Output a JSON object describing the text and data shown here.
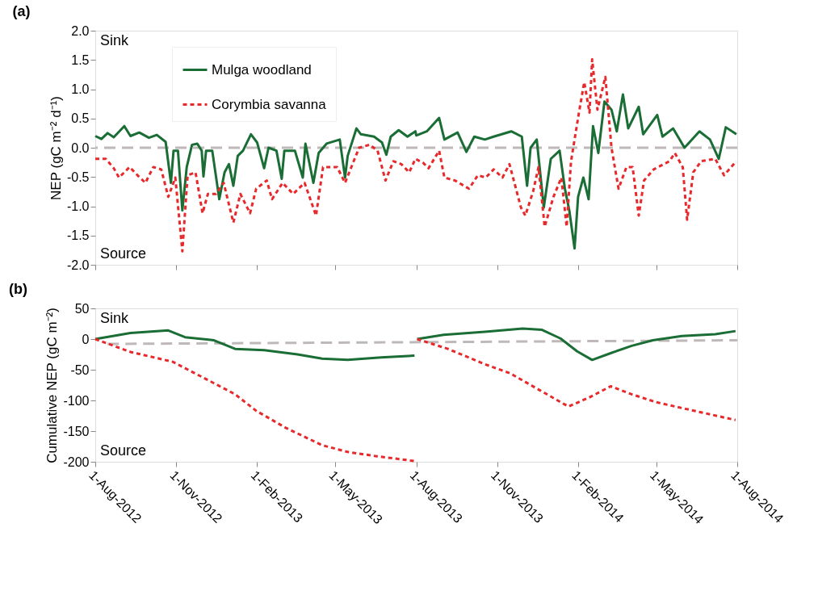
{
  "chart_data": [
    {
      "type": "line",
      "title": "(a)",
      "ylabel": "NEP (gC m⁻² d⁻¹)",
      "tick_labels": "y",
      "legend": "top left",
      "grid": false,
      "xlim": [
        "2012-08-01",
        "2014-08-01"
      ],
      "xticks": [
        {
          "value": "2012-08-01",
          "label": null
        },
        {
          "value": "2012-11-01",
          "label": null
        },
        {
          "value": "2013-02-01",
          "label": null
        },
        {
          "value": "2013-05-01",
          "label": null
        },
        {
          "value": "2013-08-01",
          "label": null
        },
        {
          "value": "2013-11-01",
          "label": null
        },
        {
          "value": "2014-02-01",
          "label": null
        },
        {
          "value": "2014-05-01",
          "label": null
        },
        {
          "value": "2014-08-01",
          "label": null
        }
      ],
      "ylim": [
        -2,
        2
      ],
      "yticks": [
        {
          "value": -2,
          "label": "-2.0"
        },
        {
          "value": -1.5,
          "label": "-1.5"
        },
        {
          "value": -1,
          "label": "-1.0"
        },
        {
          "value": -0.5,
          "label": "-0.5"
        },
        {
          "value": 0,
          "label": "0.0"
        },
        {
          "value": 0.5,
          "label": "0.5"
        },
        {
          "value": 1,
          "label": "1.0"
        },
        {
          "value": 1.5,
          "label": "1.5"
        },
        {
          "value": 2,
          "label": "2.0"
        }
      ],
      "ref_lines": [
        {
          "axis": "y",
          "value": 0,
          "label": null,
          "color": "#bfb8b8",
          "line_style": "dashed"
        }
      ],
      "annotations": [
        "Sink",
        "Source"
      ],
      "series": [
        {
          "name": "Mulga woodland",
          "color": "#1a6e35",
          "line_style": "solid",
          "x": [
            "2012-08-01",
            "2012-08-08",
            "2012-08-15",
            "2012-08-22",
            "2012-09-03",
            "2012-09-10",
            "2012-09-20",
            "2012-10-01",
            "2012-10-10",
            "2012-10-20",
            "2012-10-26",
            "2012-10-29",
            "2012-11-03",
            "2012-11-08",
            "2012-11-13",
            "2012-11-19",
            "2012-11-25",
            "2012-11-30",
            "2012-12-02",
            "2012-12-05",
            "2012-12-12",
            "2012-12-20",
            "2012-12-26",
            "2012-12-31",
            "2013-01-05",
            "2013-01-10",
            "2013-01-16",
            "2013-01-25",
            "2013-02-01",
            "2013-02-09",
            "2013-02-14",
            "2013-02-23",
            "2013-03-01",
            "2013-03-04",
            "2013-03-16",
            "2013-03-25",
            "2013-03-28",
            "2013-04-06",
            "2013-04-12",
            "2013-04-21",
            "2013-05-06",
            "2013-05-12",
            "2013-05-15",
            "2013-05-25",
            "2013-05-30",
            "2013-06-14",
            "2013-06-23",
            "2013-06-28",
            "2013-07-03",
            "2013-07-12",
            "2013-07-22",
            "2013-07-31",
            "2013-08-01",
            "2013-08-13",
            "2013-08-27",
            "2013-09-02",
            "2013-09-17",
            "2013-09-27",
            "2013-10-06",
            "2013-10-18",
            "2013-10-28",
            "2013-11-17",
            "2013-11-29",
            "2013-12-05",
            "2013-12-09",
            "2013-12-16",
            "2013-12-24",
            "2014-01-01",
            "2014-01-11",
            "2014-01-17",
            "2014-01-22",
            "2014-01-28",
            "2014-02-01",
            "2014-02-07",
            "2014-02-13",
            "2014-02-18",
            "2014-02-24",
            "2014-03-03",
            "2014-03-11",
            "2014-03-17",
            "2014-03-24",
            "2014-03-30",
            "2014-04-11",
            "2014-04-16",
            "2014-05-02",
            "2014-05-08",
            "2014-05-20",
            "2014-06-02",
            "2014-06-19",
            "2014-07-01",
            "2014-07-11",
            "2014-07-19",
            "2014-07-31"
          ],
          "values": [
            0.2,
            0.15,
            0.25,
            0.18,
            0.37,
            0.2,
            0.26,
            0.17,
            0.22,
            0.1,
            -0.6,
            -0.05,
            -0.05,
            -1.07,
            -0.33,
            0.05,
            0.07,
            -0.05,
            -0.49,
            -0.05,
            -0.05,
            -0.88,
            -0.42,
            -0.28,
            -0.65,
            -0.14,
            -0.05,
            0.23,
            0.09,
            -0.35,
            0,
            -0.05,
            -0.53,
            -0.05,
            -0.05,
            -0.51,
            0.07,
            -0.6,
            -0.09,
            0.07,
            0.14,
            -0.51,
            -0.14,
            0.33,
            0.23,
            0.19,
            0.09,
            -0.12,
            0.19,
            0.3,
            0.19,
            0.28,
            0.21,
            0.28,
            0.51,
            0.14,
            0.26,
            -0.07,
            0.19,
            0.14,
            0.19,
            0.28,
            0.19,
            -0.65,
            0,
            0.14,
            -1.02,
            -0.19,
            -0.05,
            -0.7,
            -1.07,
            -1.72,
            -0.84,
            -0.51,
            -0.88,
            0.37,
            -0.09,
            0.79,
            0.65,
            0.28,
            0.91,
            0.33,
            0.7,
            0.23,
            0.56,
            0.19,
            0.33,
            0,
            0.28,
            0.14,
            -0.19,
            0.35,
            0.23
          ]
        },
        {
          "name": "Corymbia savanna",
          "color": "#e8292b",
          "line_style": "dotted",
          "x": [
            "2012-08-01",
            "2012-08-13",
            "2012-08-22",
            "2012-08-28",
            "2012-09-09",
            "2012-09-18",
            "2012-09-27",
            "2012-10-06",
            "2012-10-15",
            "2012-10-23",
            "2012-10-31",
            "2012-11-08",
            "2012-11-14",
            "2012-11-23",
            "2012-12-01",
            "2012-12-07",
            "2012-12-16",
            "2012-12-25",
            "2013-01-05",
            "2013-01-13",
            "2013-01-24",
            "2013-01-31",
            "2013-02-12",
            "2013-02-18",
            "2013-03-02",
            "2013-03-14",
            "2013-03-27",
            "2013-04-09",
            "2013-04-17",
            "2013-05-03",
            "2013-05-12",
            "2013-05-28",
            "2013-06-09",
            "2013-06-18",
            "2013-06-27",
            "2013-07-06",
            "2013-07-15",
            "2013-07-24",
            "2013-07-31",
            "2013-08-09",
            "2013-08-15",
            "2013-08-27",
            "2013-09-02",
            "2013-09-14",
            "2013-09-30",
            "2013-10-10",
            "2013-10-19",
            "2013-10-28",
            "2013-11-07",
            "2013-11-15",
            "2013-11-28",
            "2013-12-03",
            "2013-12-12",
            "2013-12-18",
            "2013-12-25",
            "2014-01-04",
            "2014-01-13",
            "2014-01-19",
            "2014-01-24",
            "2014-02-02",
            "2014-02-08",
            "2014-02-14",
            "2014-02-17",
            "2014-02-23",
            "2014-03-04",
            "2014-03-11",
            "2014-03-19",
            "2014-03-28",
            "2014-04-04",
            "2014-04-11",
            "2014-04-17",
            "2014-04-28",
            "2014-05-16",
            "2014-05-22",
            "2014-05-31",
            "2014-06-05",
            "2014-06-12",
            "2014-06-21",
            "2014-07-07",
            "2014-07-17",
            "2014-07-31"
          ],
          "values": [
            -0.19,
            -0.19,
            -0.35,
            -0.51,
            -0.33,
            -0.47,
            -0.6,
            -0.33,
            -0.37,
            -0.84,
            -0.51,
            -1.77,
            -0.47,
            -0.42,
            -1.12,
            -0.79,
            -0.79,
            -0.6,
            -1.28,
            -0.79,
            -1.12,
            -0.7,
            -0.56,
            -0.88,
            -0.6,
            -0.79,
            -0.6,
            -1.16,
            -0.33,
            -0.33,
            -0.6,
            0,
            0.05,
            -0.05,
            -0.56,
            -0.23,
            -0.28,
            -0.42,
            -0.19,
            -0.26,
            -0.35,
            -0.05,
            -0.51,
            -0.56,
            -0.7,
            -0.47,
            -0.51,
            -0.37,
            -0.51,
            -0.28,
            -1.02,
            -1.16,
            -0.74,
            -0.33,
            -1.35,
            -0.84,
            -0.51,
            -1.35,
            -0.23,
            0.6,
            1.12,
            0.6,
            1.51,
            0.65,
            1.21,
            0,
            -0.7,
            -0.33,
            -0.33,
            -1.16,
            -0.56,
            -0.37,
            -0.23,
            -0.09,
            -0.33,
            -1.23,
            -0.42,
            -0.23,
            -0.19,
            -0.47,
            -0.23
          ]
        }
      ]
    },
    {
      "type": "line",
      "title": "(b)",
      "ylabel": "Cumulative NEP (gC m⁻²)",
      "grid": false,
      "xlim": [
        "2012-08-01",
        "2014-08-01"
      ],
      "xticks": [
        {
          "value": "2012-08-01",
          "label": "1-Aug-2012"
        },
        {
          "value": "2012-11-01",
          "label": "1-Nov-2012"
        },
        {
          "value": "2013-02-01",
          "label": "1-Feb-2013"
        },
        {
          "value": "2013-05-01",
          "label": "1-May-2013"
        },
        {
          "value": "2013-08-01",
          "label": "1-Aug-2013"
        },
        {
          "value": "2013-11-01",
          "label": "1-Nov-2013"
        },
        {
          "value": "2014-02-01",
          "label": "1-Feb-2014"
        },
        {
          "value": "2014-05-01",
          "label": "1-May-2014"
        },
        {
          "value": "2014-08-01",
          "label": "1-Aug-2014"
        }
      ],
      "ylim": [
        -200,
        50
      ],
      "yticks": [
        -200,
        -150,
        -100,
        -50,
        0,
        50
      ],
      "annotations": [
        "Sink",
        "Source"
      ],
      "series": [
        {
          "color": "#bfb8b8",
          "line_style": "dashed",
          "x": [
            "2012-08-15",
            "2014-08-01"
          ],
          "values": [
            -8,
            -2
          ]
        },
        {
          "color": "#1a6e35",
          "line_style": "solid",
          "x": [
            "2012-08-01",
            "2012-09-10",
            "2012-10-23",
            "2012-11-11",
            "2012-12-14",
            "2013-01-07",
            "2013-02-09",
            "2013-03-19",
            "2013-04-16",
            "2013-05-15",
            "2013-06-22",
            "2013-07-30",
            "2013-07-31",
            "2013-08-02",
            "2013-09-01",
            "2013-10-18",
            "2013-11-30",
            "2013-12-22",
            "2014-01-12",
            "2014-01-31",
            "2014-02-17",
            "2014-03-10",
            "2014-04-03",
            "2014-04-27",
            "2014-05-30",
            "2014-07-07",
            "2014-07-30"
          ],
          "values": [
            0,
            10,
            14,
            3,
            -2,
            -16,
            -18,
            -25,
            -32,
            -34,
            -30,
            -27,
            null,
            0,
            7,
            12,
            17,
            15,
            1,
            -20,
            -34,
            -23,
            -11,
            -2,
            5,
            8,
            13
          ]
        },
        {
          "color": "#e8292b",
          "line_style": "dotted",
          "x": [
            "2012-08-01",
            "2012-09-10",
            "2012-10-28",
            "2012-12-14",
            "2013-01-07",
            "2013-01-31",
            "2013-03-06",
            "2013-04-16",
            "2013-05-15",
            "2013-06-17",
            "2013-07-31",
            "2013-08-01",
            "2013-08-02",
            "2013-09-06",
            "2013-10-18",
            "2013-11-16",
            "2013-12-19",
            "2014-01-21",
            "2014-02-14",
            "2014-03-10",
            "2014-04-03",
            "2014-05-01",
            "2014-06-04",
            "2014-07-30"
          ],
          "values": [
            0,
            -21,
            -37,
            -72,
            -90,
            -117,
            -145,
            -173,
            -184,
            -191,
            -199,
            null,
            0,
            -16,
            -41,
            -56,
            -83,
            -110,
            -95,
            -77,
            -90,
            -103,
            -114,
            -132
          ]
        }
      ]
    }
  ]
}
